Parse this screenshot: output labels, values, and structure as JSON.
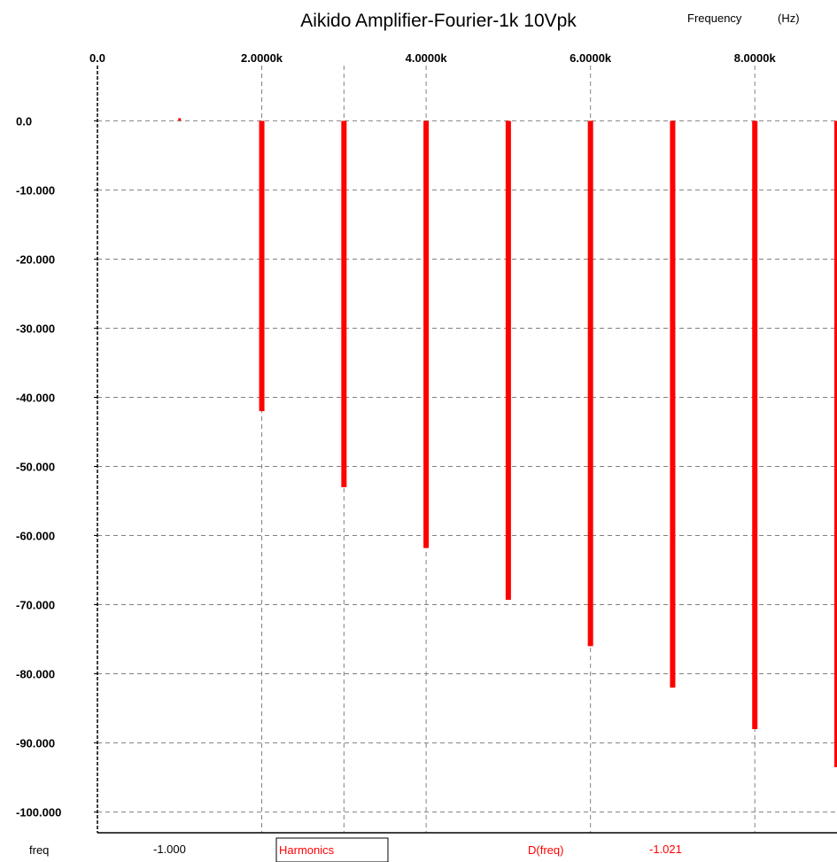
{
  "chart_data": {
    "type": "bar",
    "title": "Aikido Amplifier-Fourier-1k 10Vpk",
    "xlabel": "Frequency",
    "xlabel_unit": "(Hz)",
    "ylabel": "",
    "x_axis_position": "top",
    "xlim": [
      0,
      9000
    ],
    "ylim": [
      -103,
      8
    ],
    "grid": true,
    "x_ticks": [
      {
        "value": 0,
        "label": "0.0"
      },
      {
        "value": 2000,
        "label": "2.0000k"
      },
      {
        "value": 4000,
        "label": "4.0000k"
      },
      {
        "value": 6000,
        "label": "6.0000k"
      },
      {
        "value": 8000,
        "label": "8.0000k"
      }
    ],
    "x_gridlines": [
      2000,
      3000,
      4000,
      6000,
      8000
    ],
    "y_ticks": [
      {
        "value": 0,
        "label": "0.0"
      },
      {
        "value": -10,
        "label": "-10.000"
      },
      {
        "value": -20,
        "label": "-20.000"
      },
      {
        "value": -30,
        "label": "-30.000"
      },
      {
        "value": -40,
        "label": "-40.000"
      },
      {
        "value": -50,
        "label": "-50.000"
      },
      {
        "value": -60,
        "label": "-60.000"
      },
      {
        "value": -70,
        "label": "-70.000"
      },
      {
        "value": -80,
        "label": "-80.000"
      },
      {
        "value": -90,
        "label": "-90.000"
      },
      {
        "value": -100,
        "label": "-100.000"
      }
    ],
    "series": [
      {
        "name": "Harmonics",
        "color": "#ff0000",
        "points": [
          {
            "x": 1000,
            "y": 0
          },
          {
            "x": 2000,
            "y": -42
          },
          {
            "x": 3000,
            "y": -53
          },
          {
            "x": 4000,
            "y": -61.8
          },
          {
            "x": 5000,
            "y": -69.3
          },
          {
            "x": 6000,
            "y": -76
          },
          {
            "x": 7000,
            "y": -82
          },
          {
            "x": 8000,
            "y": -88
          },
          {
            "x": 9000,
            "y": -93.5
          }
        ]
      }
    ]
  },
  "status_bar": {
    "cursor_label": "freq",
    "cursor_x_value": "-1.000",
    "series_box_label": "Harmonics",
    "expression_label": "D(freq)",
    "expression_value": "-1.021"
  },
  "colors": {
    "series": "#ff0000",
    "grid": "#808080",
    "axis": "#000000",
    "background": "#ffffff"
  }
}
